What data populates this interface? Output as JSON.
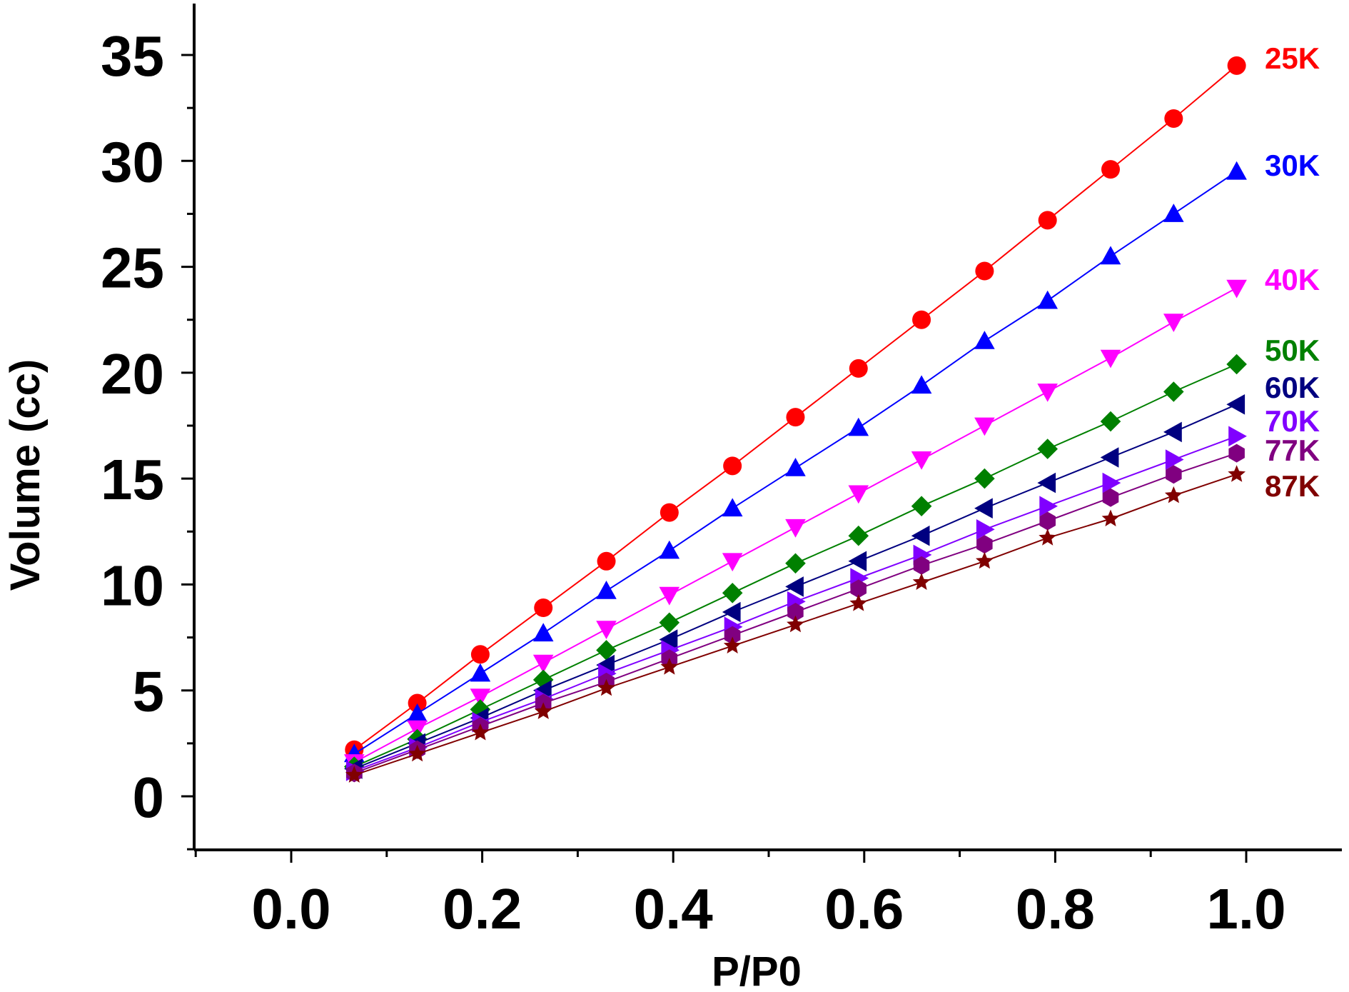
{
  "chart_data": {
    "type": "line",
    "title": "",
    "xlabel": "P/P0",
    "ylabel": "Volume (cc)",
    "xlim": [
      -0.1,
      1.05
    ],
    "ylim": [
      -2.5,
      37.5
    ],
    "xticks": [
      "0.0",
      "0.2",
      "0.4",
      "0.6",
      "0.8",
      "1.0"
    ],
    "yticks": [
      "0",
      "5",
      "10",
      "15",
      "20",
      "25",
      "30",
      "35"
    ],
    "grid": false,
    "legend": "labels at right end of each series",
    "x": [
      0.066,
      0.132,
      0.198,
      0.264,
      0.33,
      0.396,
      0.462,
      0.528,
      0.594,
      0.66,
      0.726,
      0.792,
      0.858,
      0.924,
      0.99
    ],
    "series": [
      {
        "name": "25K",
        "color": "#ff0000",
        "marker": "circle",
        "values": [
          2.2,
          4.4,
          6.7,
          8.9,
          11.1,
          13.4,
          15.6,
          17.9,
          20.2,
          22.5,
          24.8,
          27.2,
          29.6,
          32.0,
          34.5
        ]
      },
      {
        "name": "30K",
        "color": "#0000ff",
        "marker": "triangle-up",
        "values": [
          2.0,
          3.9,
          5.8,
          7.7,
          9.7,
          11.6,
          13.6,
          15.5,
          17.4,
          19.4,
          21.5,
          23.4,
          25.5,
          27.5,
          29.5
        ]
      },
      {
        "name": "40K",
        "color": "#ff00ff",
        "marker": "triangle-down",
        "values": [
          1.6,
          3.2,
          4.7,
          6.3,
          7.9,
          9.5,
          11.1,
          12.7,
          14.3,
          15.9,
          17.5,
          19.1,
          20.7,
          22.4,
          24.0
        ]
      },
      {
        "name": "50K",
        "color": "#008000",
        "marker": "diamond",
        "values": [
          1.4,
          2.7,
          4.1,
          5.5,
          6.9,
          8.2,
          9.6,
          11.0,
          12.3,
          13.7,
          15.0,
          16.4,
          17.7,
          19.1,
          20.4
        ]
      },
      {
        "name": "60K",
        "color": "#000080",
        "marker": "triangle-left",
        "values": [
          1.3,
          2.5,
          3.7,
          5.0,
          6.2,
          7.4,
          8.7,
          9.9,
          11.1,
          12.3,
          13.6,
          14.8,
          16.0,
          17.2,
          18.5
        ]
      },
      {
        "name": "70K",
        "color": "#8000ff",
        "marker": "triangle-right",
        "values": [
          1.2,
          2.3,
          3.5,
          4.6,
          5.8,
          6.9,
          8.0,
          9.2,
          10.3,
          11.4,
          12.6,
          13.7,
          14.8,
          15.9,
          17.0
        ]
      },
      {
        "name": "77K",
        "color": "#800080",
        "marker": "hexagon",
        "values": [
          1.1,
          2.2,
          3.3,
          4.4,
          5.4,
          6.5,
          7.6,
          8.7,
          9.8,
          10.9,
          11.9,
          13.0,
          14.1,
          15.2,
          16.2
        ]
      },
      {
        "name": "87K",
        "color": "#800000",
        "marker": "star",
        "values": [
          1.0,
          2.0,
          3.0,
          4.0,
          5.1,
          6.1,
          7.1,
          8.1,
          9.1,
          10.1,
          11.1,
          12.2,
          13.1,
          14.2,
          15.2
        ]
      }
    ]
  }
}
